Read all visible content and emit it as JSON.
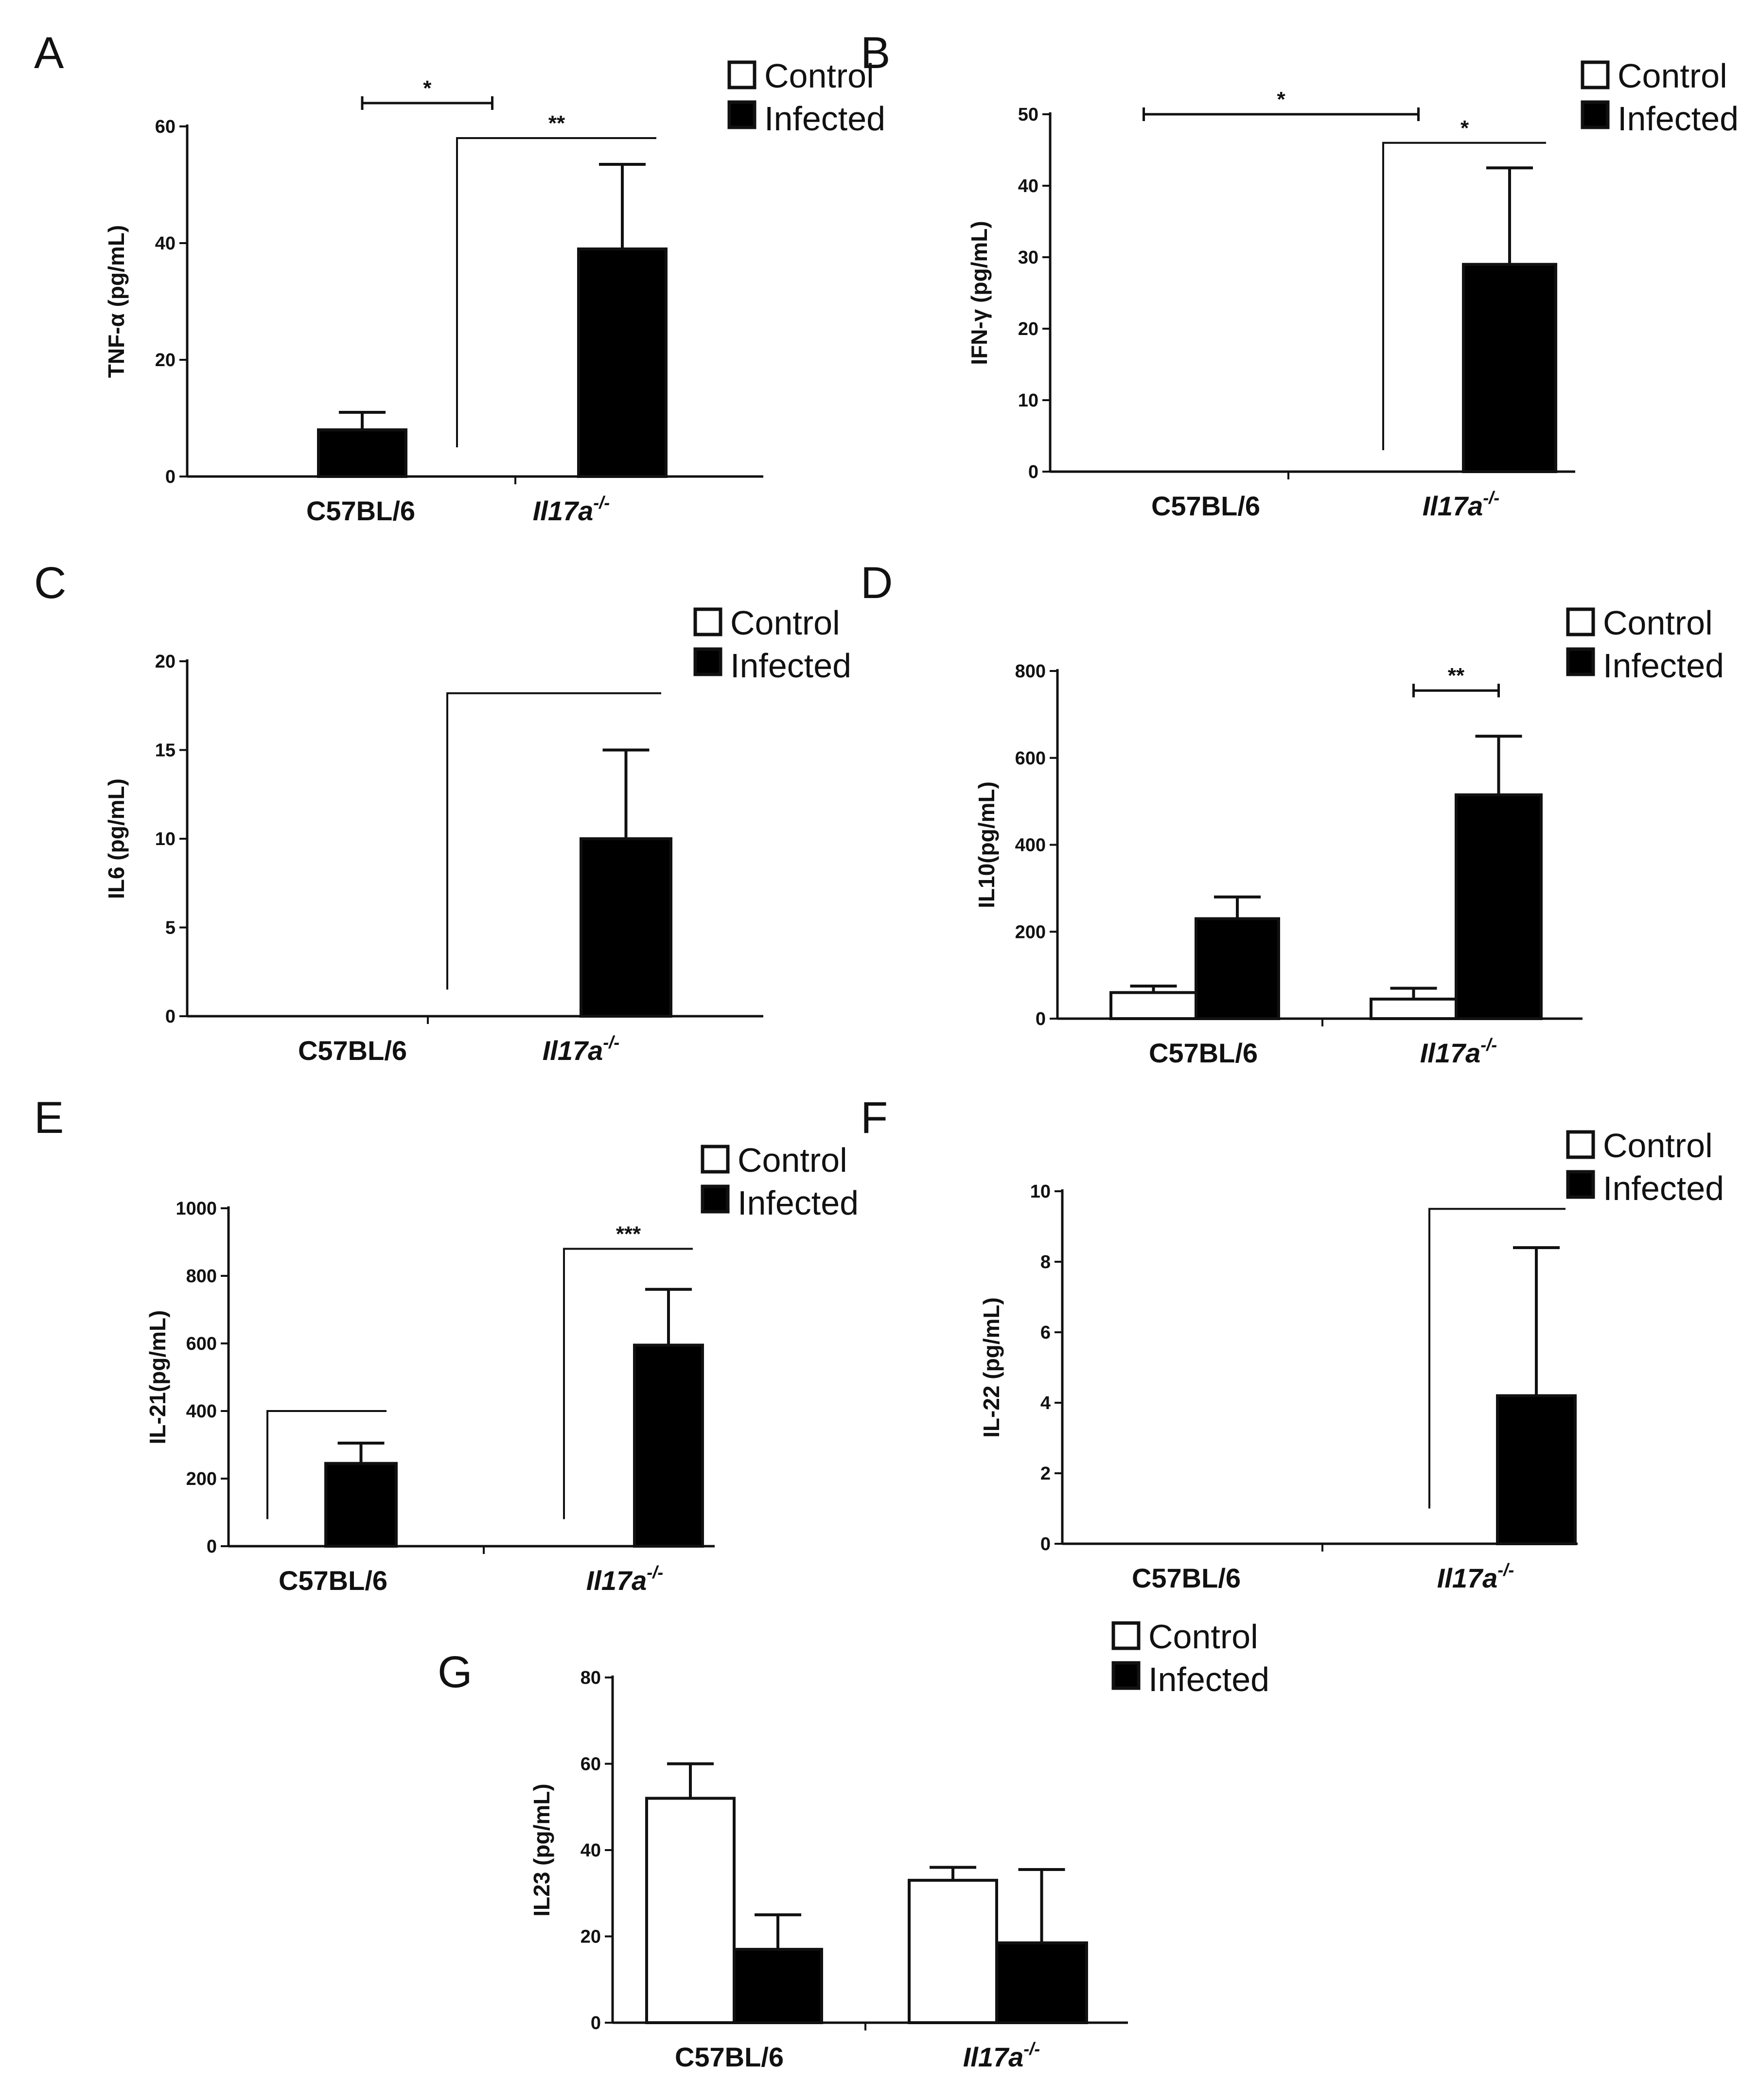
{
  "figure": {
    "colors": {
      "control": "#ffffff",
      "infected": "#000000",
      "ink": "#111111"
    },
    "legend": {
      "control": "Control",
      "infected": "Infected"
    },
    "categories": {
      "wt": "C57BL/6",
      "ko_base": "Il17a",
      "ko_sup": "-/-"
    }
  },
  "chart_data": [
    {
      "panel": "A",
      "type": "bar",
      "ylabel": "TNF-α (pg/mL)",
      "ylim": [
        0,
        60
      ],
      "yticks": [
        0,
        20,
        40,
        60
      ],
      "categories": [
        "C57BL/6",
        "Il17a-/-"
      ],
      "series": [
        {
          "name": "Control",
          "values": [
            0,
            0
          ],
          "errors": [
            0,
            0
          ]
        },
        {
          "name": "Infected",
          "values": [
            8,
            39
          ],
          "errors": [
            3,
            14.5
          ]
        }
      ],
      "annotations": [
        {
          "kind": "capped",
          "label": "*",
          "from": "C57BL/6 Infected",
          "to": "Il17a-/- Control",
          "y": 64
        },
        {
          "kind": "step",
          "label": "**",
          "from": "Il17a-/- Control",
          "to": "Il17a-/- Infected",
          "y": 58,
          "y_left": 5
        }
      ]
    },
    {
      "panel": "B",
      "type": "bar",
      "ylabel": "IFN-γ (pg/mL)",
      "ylim": [
        0,
        50
      ],
      "yticks": [
        0,
        10,
        20,
        30,
        40,
        50
      ],
      "categories": [
        "C57BL/6",
        "Il17a-/-"
      ],
      "series": [
        {
          "name": "Control",
          "values": [
            0,
            0
          ],
          "errors": [
            0,
            0
          ]
        },
        {
          "name": "Infected",
          "values": [
            0,
            29
          ],
          "errors": [
            0,
            13.5
          ]
        }
      ],
      "annotations": [
        {
          "kind": "capped",
          "label": "*",
          "from": "C57BL/6 Control",
          "to": "Il17a-/- Control",
          "y": 50
        },
        {
          "kind": "step",
          "label": "*",
          "from": "Il17a-/- Control",
          "to": "Il17a-/- Infected",
          "y": 46,
          "y_left": 3
        }
      ]
    },
    {
      "panel": "C",
      "type": "bar",
      "ylabel": "IL6 (pg/mL)",
      "ylim": [
        0,
        20
      ],
      "yticks": [
        0,
        5,
        10,
        15,
        20
      ],
      "categories": [
        "C57BL/6",
        "Il17a-/-"
      ],
      "series": [
        {
          "name": "Control",
          "values": [
            0,
            0
          ],
          "errors": [
            0,
            0
          ]
        },
        {
          "name": "Infected",
          "values": [
            0,
            10
          ],
          "errors": [
            0,
            5
          ]
        }
      ],
      "annotations": [
        {
          "kind": "step",
          "label": "",
          "from": "Il17a-/- Control",
          "to": "Il17a-/- Infected",
          "y": 18.2,
          "y_left": 1.5
        }
      ]
    },
    {
      "panel": "D",
      "type": "bar",
      "ylabel": "IL10(pg/mL)",
      "ylim": [
        0,
        800
      ],
      "yticks": [
        0,
        200,
        400,
        600,
        800
      ],
      "categories": [
        "C57BL/6",
        "Il17a-/-"
      ],
      "series": [
        {
          "name": "Control",
          "values": [
            60,
            45
          ],
          "errors": [
            15,
            25
          ]
        },
        {
          "name": "Infected",
          "values": [
            230,
            515
          ],
          "errors": [
            50,
            135
          ]
        }
      ],
      "annotations": [
        {
          "kind": "capped",
          "label": "**",
          "from": "Il17a-/- Control",
          "to": "Il17a-/- Infected",
          "y": 755
        }
      ]
    },
    {
      "panel": "E",
      "type": "bar",
      "ylabel": "IL-21(pg/mL)",
      "ylim": [
        0,
        1000
      ],
      "yticks": [
        0,
        200,
        400,
        600,
        800,
        1000
      ],
      "categories": [
        "C57BL/6",
        "Il17a-/-"
      ],
      "series": [
        {
          "name": "Control",
          "values": [
            0,
            0
          ],
          "errors": [
            0,
            0
          ]
        },
        {
          "name": "Infected",
          "values": [
            245,
            595
          ],
          "errors": [
            60,
            165
          ]
        }
      ],
      "annotations": [
        {
          "kind": "step",
          "label": "",
          "from": "C57BL/6 Control",
          "to": "C57BL/6 Infected",
          "y": 400,
          "y_left": 80
        },
        {
          "kind": "step",
          "label": "***",
          "from": "Il17a-/- Control",
          "to": "Il17a-/- Infected",
          "y": 880,
          "y_left": 80
        }
      ]
    },
    {
      "panel": "F",
      "type": "bar",
      "ylabel": "IL-22 (pg/mL)",
      "ylim": [
        0,
        10
      ],
      "yticks": [
        0,
        2,
        4,
        6,
        8,
        10
      ],
      "categories": [
        "C57BL/6",
        "Il17a-/-"
      ],
      "series": [
        {
          "name": "Control",
          "values": [
            0,
            0
          ],
          "errors": [
            0,
            0
          ]
        },
        {
          "name": "Infected",
          "values": [
            0,
            4.2
          ],
          "errors": [
            0,
            4.2
          ]
        }
      ],
      "annotations": [
        {
          "kind": "step",
          "label": "",
          "from": "Il17a-/- Control",
          "to": "Il17a-/- Infected",
          "y": 9.5,
          "y_left": 1
        }
      ]
    },
    {
      "panel": "G",
      "type": "bar",
      "ylabel": "IL23 (pg/mL)",
      "ylim": [
        0,
        80
      ],
      "yticks": [
        0,
        20,
        40,
        60,
        80
      ],
      "categories": [
        "C57BL/6",
        "Il17a-/-"
      ],
      "series": [
        {
          "name": "Control",
          "values": [
            52,
            33
          ],
          "errors": [
            8,
            3
          ]
        },
        {
          "name": "Infected",
          "values": [
            17,
            18.5
          ],
          "errors": [
            8,
            17
          ]
        }
      ],
      "annotations": []
    }
  ]
}
